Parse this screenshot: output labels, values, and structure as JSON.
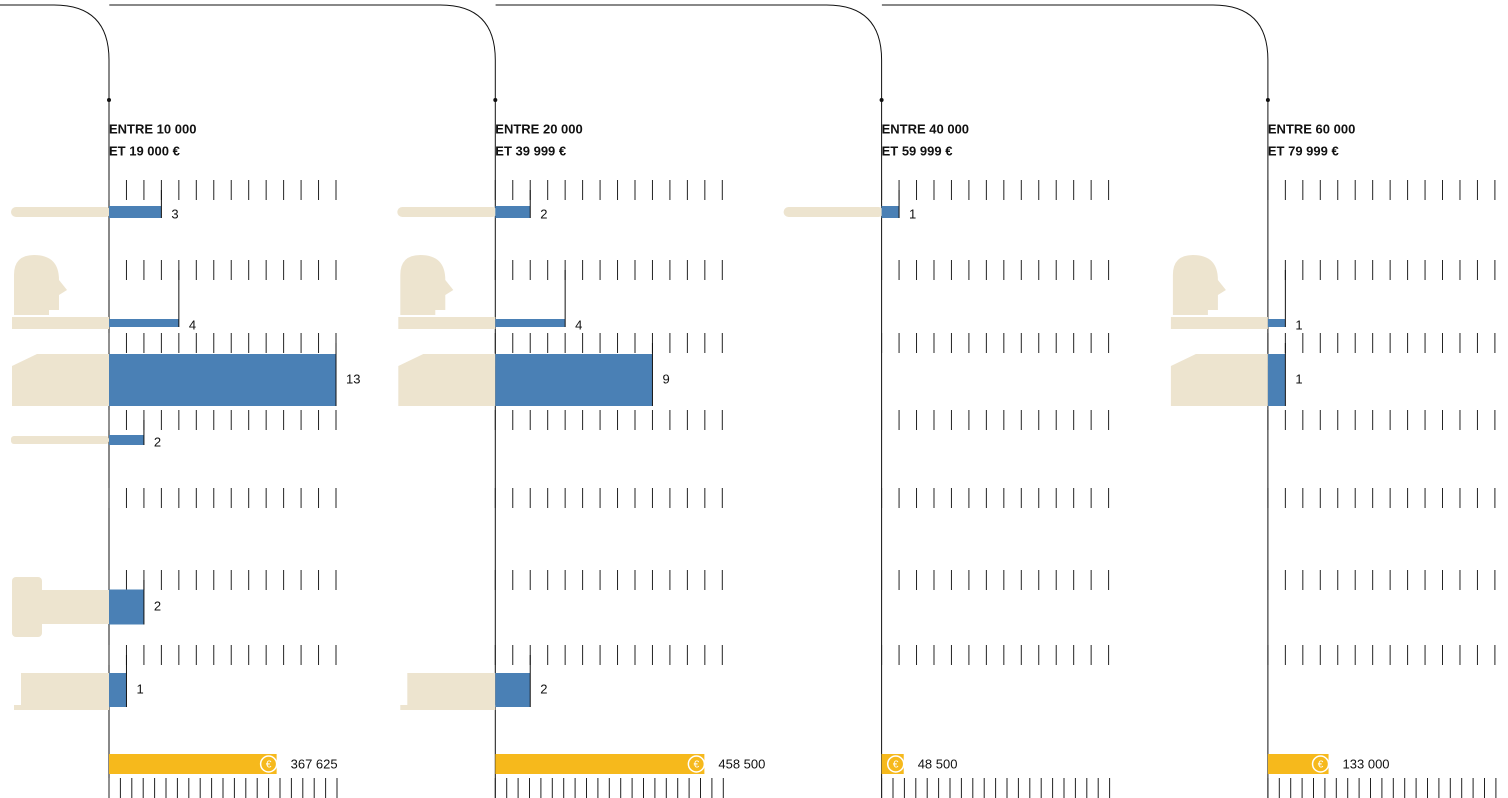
{
  "coin": "€",
  "chart_data": [
    {
      "type": "bar",
      "title": "ENTRE 10 000",
      "subtitle": "ET 19 000 €",
      "values": [
        3,
        4,
        13,
        2,
        null,
        2,
        1
      ],
      "color": "#4a80b5",
      "xlim": [
        0,
        13
      ],
      "xticks": [
        0,
        1,
        2,
        3,
        4,
        5,
        6,
        7,
        8,
        9,
        10,
        11,
        12,
        13
      ],
      "total": {
        "value": 367625,
        "label": "367 625"
      },
      "total_color": "#f6b91c",
      "x2lim": [
        0,
        500000
      ],
      "x2ticks": [
        0,
        25000,
        50000,
        75000,
        100000,
        125000,
        150000,
        175000,
        200000,
        225000,
        250000,
        275000,
        300000,
        325000,
        350000,
        375000,
        400000,
        425000,
        450000,
        475000,
        500000
      ]
    },
    {
      "type": "bar",
      "title": "ENTRE 20 000",
      "subtitle": "ET 39 999 €",
      "values": [
        2,
        4,
        9,
        null,
        null,
        null,
        2
      ],
      "color": "#4a80b5",
      "xlim": [
        0,
        13
      ],
      "xticks": [
        0,
        1,
        2,
        3,
        4,
        5,
        6,
        7,
        8,
        9,
        10,
        11,
        12,
        13
      ],
      "total": {
        "value": 458500,
        "label": "458 500"
      },
      "total_color": "#f6b91c",
      "x2lim": [
        0,
        500000
      ],
      "x2ticks": [
        0,
        25000,
        50000,
        75000,
        100000,
        125000,
        150000,
        175000,
        200000,
        225000,
        250000,
        275000,
        300000,
        325000,
        350000,
        375000,
        400000,
        425000,
        450000,
        475000,
        500000
      ]
    },
    {
      "type": "bar",
      "title": "ENTRE 40 000",
      "subtitle": "ET 59 999 €",
      "values": [
        1,
        null,
        null,
        null,
        null,
        null,
        null
      ],
      "color": "#4a80b5",
      "xlim": [
        0,
        13
      ],
      "xticks": [
        0,
        1,
        2,
        3,
        4,
        5,
        6,
        7,
        8,
        9,
        10,
        11,
        12,
        13
      ],
      "total": {
        "value": 48500,
        "label": "48 500"
      },
      "total_color": "#f6b91c",
      "x2lim": [
        0,
        500000
      ],
      "x2ticks": [
        0,
        25000,
        50000,
        75000,
        100000,
        125000,
        150000,
        175000,
        200000,
        225000,
        250000,
        275000,
        300000,
        325000,
        350000,
        375000,
        400000,
        425000,
        450000,
        475000,
        500000
      ]
    },
    {
      "type": "bar",
      "title": "ENTRE 60 000",
      "subtitle": "ET 79 999 €",
      "values": [
        null,
        1,
        1,
        null,
        null,
        null,
        null
      ],
      "color": "#4a80b5",
      "xlim": [
        0,
        13
      ],
      "xticks": [
        0,
        1,
        2,
        3,
        4,
        5,
        6,
        7,
        8,
        9,
        10,
        11,
        12,
        13
      ],
      "total": {
        "value": 133000,
        "label": "133 000"
      },
      "total_color": "#f6b91c",
      "x2lim": [
        0,
        500000
      ],
      "x2ticks": [
        0,
        25000,
        50000,
        75000,
        100000,
        125000,
        150000,
        175000,
        200000,
        225000,
        250000,
        275000,
        300000,
        325000,
        350000,
        375000,
        400000,
        425000,
        450000,
        475000,
        500000
      ]
    }
  ]
}
